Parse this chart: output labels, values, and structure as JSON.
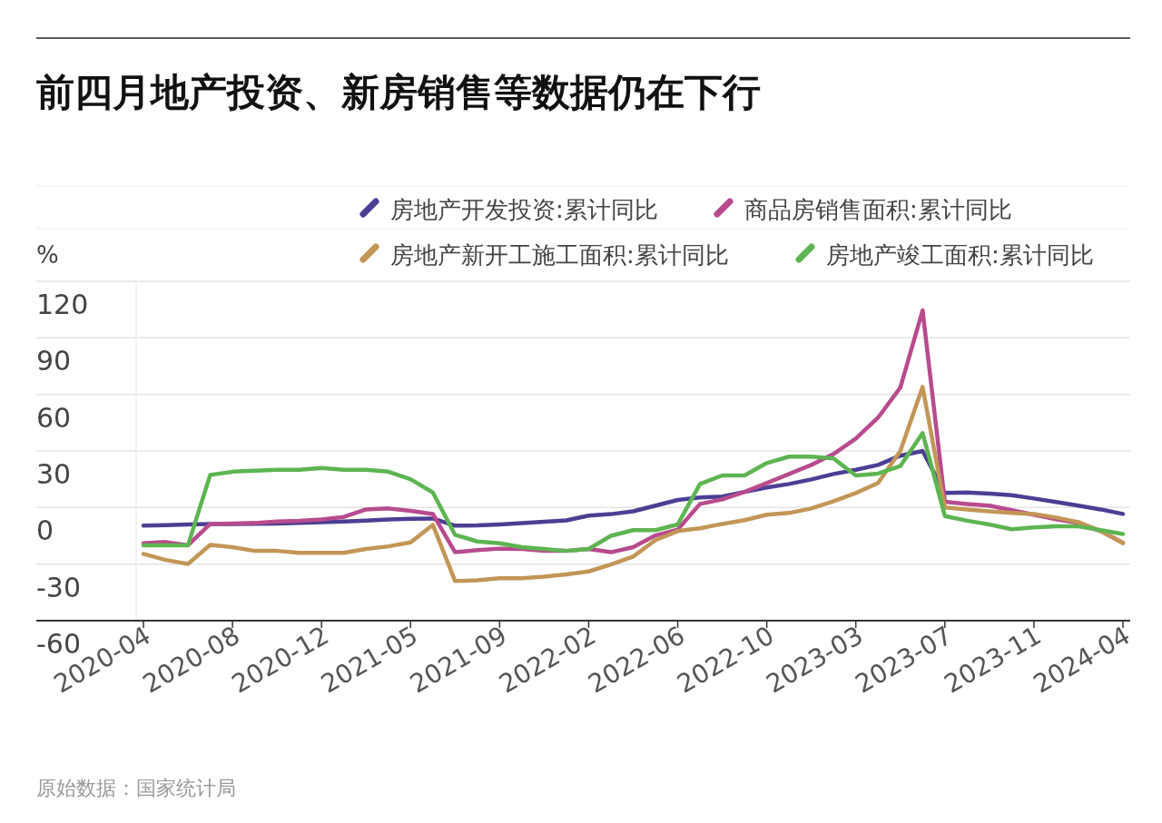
{
  "chart_data": {
    "type": "line",
    "title": "前四月地产投资、新房销售等数据仍在下行",
    "ylabel": "%",
    "categories": [
      "2020-04",
      null,
      null,
      null,
      "2020-08",
      null,
      null,
      null,
      "2020-12",
      null,
      null,
      null,
      "2021-05",
      null,
      null,
      null,
      "2021-09",
      null,
      null,
      null,
      "2022-02",
      null,
      null,
      null,
      "2022-06",
      null,
      null,
      null,
      "2022-10",
      null,
      null,
      null,
      "2023-03",
      null,
      null,
      null,
      "2023-07",
      null,
      null,
      null,
      "2023-11",
      null,
      null,
      null,
      "2024-04"
    ],
    "series": [
      {
        "name": "房地产开发投资:累计同比",
        "color": "#4b3f94",
        "values": [
          -9.6,
          -9.3,
          -9,
          -8.8,
          -8.7,
          -8.6,
          -8.5,
          -8.2,
          -7.8,
          -7.4,
          -6.9,
          -6.3,
          -6,
          -5.8,
          -9.6,
          -9.5,
          -9,
          -8.3,
          -7.5,
          -6.8,
          -4.3,
          -3.5,
          -2,
          1,
          4,
          5.3,
          5.8,
          8.3,
          10.6,
          12.5,
          14.9,
          17.8,
          20,
          22.6,
          27.5,
          30,
          7.7,
          8,
          7.4,
          6.5,
          4.8,
          2.9,
          1,
          -1,
          -3.4
        ]
      },
      {
        "name": "商品房销售面积:累计同比",
        "color": "#b84b8e",
        "values": [
          -19,
          -18.3,
          -20,
          -8.7,
          -8.5,
          -8.2,
          -7.4,
          -7,
          -6.3,
          -5,
          -1,
          -0.5,
          -1.8,
          -3.4,
          -23.7,
          -22.6,
          -21.8,
          -22,
          -23,
          -23,
          -22,
          -23.7,
          -21,
          -14.8,
          -11.7,
          1.9,
          4.3,
          8.3,
          13,
          17.8,
          22.6,
          28.4,
          36.6,
          47.7,
          63.6,
          104.6,
          3,
          1.9,
          1,
          -1.4,
          -3.8,
          -6.2,
          -8.2,
          -12.5,
          -18.7
        ]
      },
      {
        "name": "房地产新开工施工面积:累计同比",
        "color": "#c29656",
        "values": [
          -24.6,
          -27.8,
          -29.9,
          -19.8,
          -21,
          -23,
          -23,
          -24,
          -24,
          -24,
          -22,
          -20.6,
          -18.5,
          -9.2,
          -39,
          -38.6,
          -37.5,
          -37.5,
          -36.7,
          -35.5,
          -33.9,
          -30.2,
          -26,
          -17.3,
          -12.5,
          -11,
          -8.7,
          -6.7,
          -3.8,
          -2.9,
          -0.5,
          3.4,
          7.7,
          13,
          30,
          64,
          0,
          -1,
          -2,
          -2.8,
          -3.4,
          -5.3,
          -7.7,
          -12.5,
          -18.8
        ]
      },
      {
        "name": "房地产竣工面积:累计同比",
        "color": "#5db551",
        "values": [
          -20,
          -20,
          -20,
          17.3,
          19,
          19.5,
          20,
          20,
          21,
          20,
          20,
          19,
          15,
          8,
          -14.5,
          -18,
          -19,
          -21,
          -22,
          -23,
          -22,
          -15,
          -12,
          -12,
          -9,
          12.5,
          17,
          17,
          23.6,
          27,
          27,
          26,
          17,
          18,
          22,
          39.5,
          -4.5,
          -7,
          -9,
          -11.5,
          -10.6,
          -10,
          -10,
          -12,
          -14
        ]
      }
    ],
    "ylim": [
      -60,
      120
    ],
    "yticks": [
      -60,
      -30,
      0,
      30,
      60,
      90,
      120
    ],
    "grid": "y",
    "legend": "top right",
    "annotations": [
      "原始数据：国家统计局"
    ]
  }
}
